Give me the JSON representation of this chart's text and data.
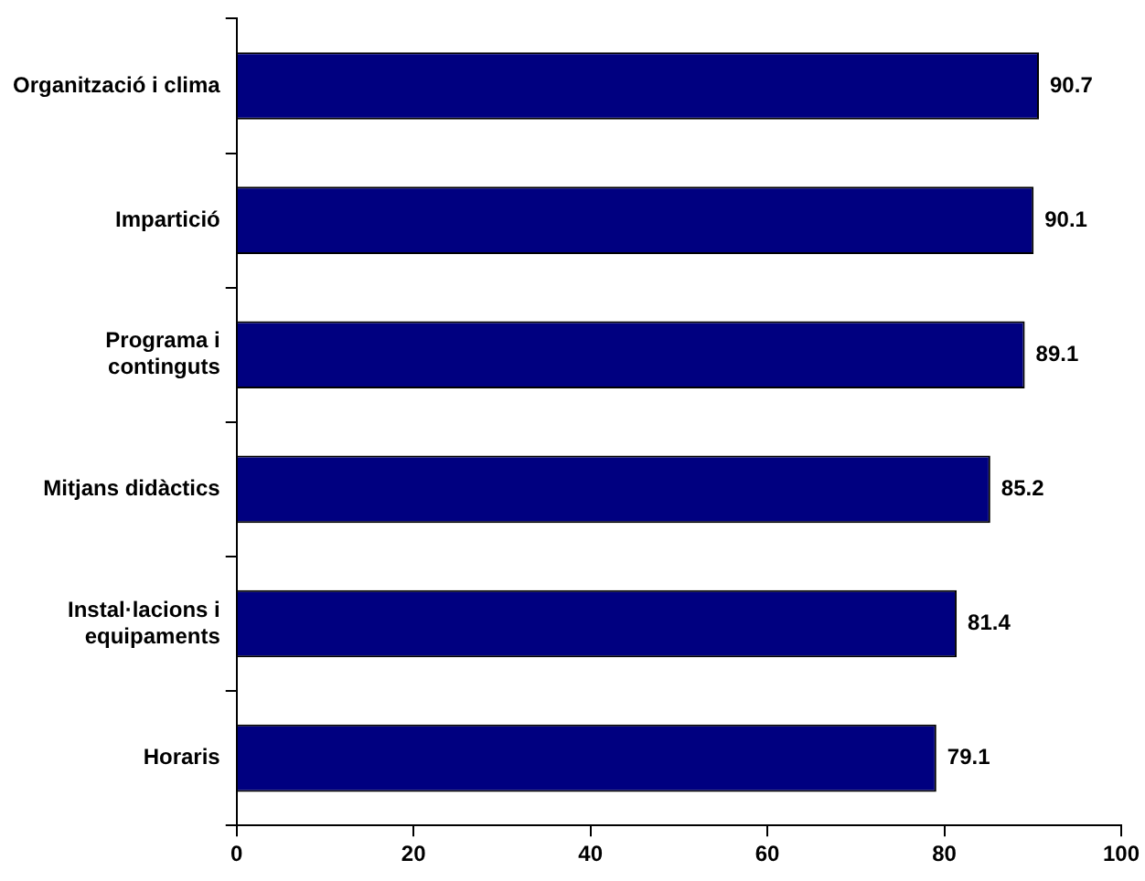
{
  "chart_data": {
    "type": "bar",
    "orientation": "horizontal",
    "categories": [
      "Organització i clima",
      "Impartició",
      "Programa i continguts",
      "Mitjans didàctics",
      "Instal·lacions i equipaments",
      "Horaris"
    ],
    "values": [
      90.7,
      90.1,
      89.1,
      85.2,
      81.4,
      79.1
    ],
    "color": "#000080",
    "xlim": [
      0,
      100
    ],
    "xticks": [
      0,
      20,
      40,
      60,
      80,
      100
    ],
    "grid": false,
    "legend": false,
    "data_labels": true
  }
}
